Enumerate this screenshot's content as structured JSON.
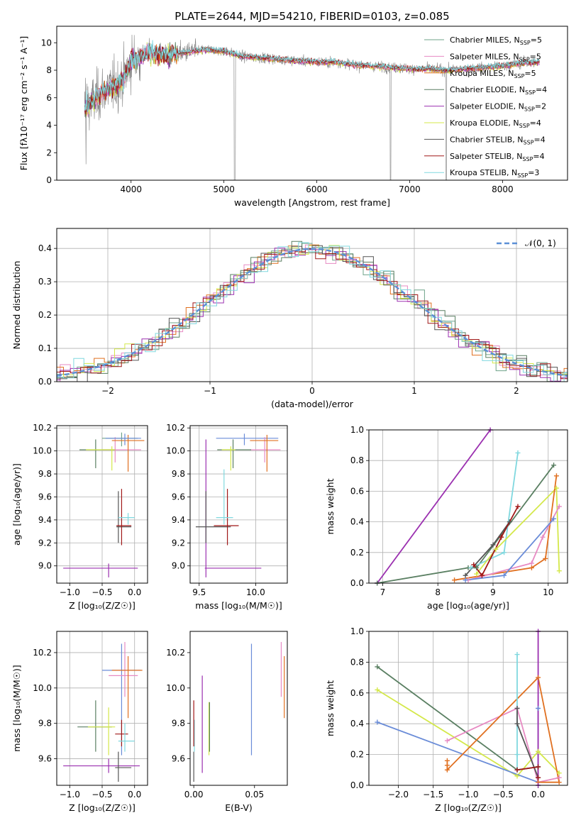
{
  "figure": {
    "title": "PLATE=2644, MJD=54210, FIBERID=0103, z=0.085"
  },
  "colors": {
    "Chabrier MILES": "#6fa38a",
    "Salpeter MILES": "#e78ac3",
    "Kroupa MILES": "#e07020",
    "Chabrier ELODIE": "#5a7f62",
    "Salpeter ELODIE": "#9b30b0",
    "Kroupa ELODIE": "#d4e84a",
    "Chabrier STELIB": "#555555",
    "Salpeter STELIB": "#a01818",
    "Kroupa STELIB": "#80d8df",
    "blue": "#6a8cd8",
    "normal": "#5b8fd6",
    "grid": "#b0b0b0"
  },
  "chart_data": [
    {
      "id": "spectrum",
      "type": "line",
      "title": "PLATE=2644, MJD=54210, FIBERID=0103, z=0.085",
      "xlabel": "wavelength [Angstrom, rest frame]",
      "ylabel": "Flux [fλ10⁻¹⁷ erg cm⁻² s⁻¹ A⁻¹]",
      "xlim": [
        3200,
        8700
      ],
      "ylim": [
        0,
        11.2
      ],
      "xticks": [
        4000,
        5000,
        6000,
        7000,
        8000
      ],
      "yticks": [
        0,
        2,
        4,
        6,
        8,
        10
      ],
      "grid": false,
      "legend_position": "right",
      "legend": [
        {
          "label": "Chabrier MILES, N",
          "sub": "SSP",
          "tail": "=5",
          "color_key": "Chabrier MILES"
        },
        {
          "label": "Salpeter MILES, N",
          "sub": "SSP",
          "tail": "=5",
          "color_key": "Salpeter MILES"
        },
        {
          "label": "Kroupa MILES, N",
          "sub": "SSP",
          "tail": "=5",
          "color_key": "Kroupa MILES"
        },
        {
          "label": "Chabrier ELODIE, N",
          "sub": "SSP",
          "tail": "=4",
          "color_key": "Chabrier ELODIE"
        },
        {
          "label": "Salpeter ELODIE, N",
          "sub": "SSP",
          "tail": "=2",
          "color_key": "Salpeter ELODIE"
        },
        {
          "label": "Kroupa ELODIE, N",
          "sub": "SSP",
          "tail": "=4",
          "color_key": "Kroupa ELODIE"
        },
        {
          "label": "Chabrier STELIB, N",
          "sub": "SSP",
          "tail": "=4",
          "color_key": "Chabrier STELIB"
        },
        {
          "label": "Salpeter STELIB, N",
          "sub": "SSP",
          "tail": "=4",
          "color_key": "Salpeter STELIB"
        },
        {
          "label": "Kroupa STELIB, N",
          "sub": "SSP",
          "tail": "=3",
          "color_key": "Kroupa STELIB"
        }
      ],
      "data_envelope": {
        "x": [
          3500,
          3600,
          3700,
          3800,
          3900,
          4000,
          4100,
          4200,
          4400,
          4600,
          4800,
          5000,
          5200,
          5400,
          5600,
          5800,
          6000,
          6200,
          6400,
          6600,
          6800,
          7000,
          7200,
          7400,
          7600,
          7800,
          8000,
          8200,
          8400
        ],
        "y": [
          5.2,
          5.8,
          6.5,
          6.8,
          7.2,
          8.6,
          9.0,
          9.3,
          9.1,
          9.3,
          9.5,
          9.4,
          9.0,
          8.9,
          8.8,
          8.7,
          8.6,
          8.6,
          8.4,
          8.3,
          8.2,
          8.1,
          8.1,
          8.0,
          8.1,
          8.2,
          8.3,
          8.5,
          8.6
        ]
      }
    },
    {
      "id": "residuals",
      "type": "histogram",
      "xlabel": "(data-model)/error",
      "ylabel": "Normed distribution",
      "xlim": [
        -2.5,
        2.5
      ],
      "ylim": [
        0,
        0.46
      ],
      "xticks": [
        -2,
        -1,
        0,
        1,
        2
      ],
      "yticks": [
        0.0,
        0.1,
        0.2,
        0.3,
        0.4
      ],
      "grid": true,
      "bin_width": 0.1,
      "legend_position": "top-right",
      "legend": [
        {
          "label": "𝒩(0, 1)",
          "color_key": "normal",
          "style": "dashed"
        }
      ]
    },
    {
      "id": "age_vs_Z",
      "type": "errorbar",
      "xlabel": "Z [log₁₀(Z/Z☉)]",
      "ylabel": "age  [log₁₀(age/yr)]",
      "xlim": [
        -1.2,
        0.2
      ],
      "ylim": [
        8.85,
        10.22
      ],
      "xticks": [
        -1.0,
        -0.5,
        0.0
      ],
      "yticks": [
        9.0,
        9.2,
        9.4,
        9.6,
        9.8,
        10.0,
        10.2
      ],
      "grid": true,
      "points": [
        {
          "c": "Chabrier MILES",
          "x": -0.2,
          "y": 10.11,
          "xl": -0.5,
          "xh": 0.05,
          "yl": 10.04,
          "yh": 10.16
        },
        {
          "c": "Salpeter MILES",
          "x": -0.3,
          "y": 10.01,
          "xl": -0.5,
          "xh": 0.1,
          "yl": 9.9,
          "yh": 10.12
        },
        {
          "c": "Kroupa MILES",
          "x": -0.1,
          "y": 10.09,
          "xl": -0.35,
          "xh": 0.15,
          "yl": 9.82,
          "yh": 10.14
        },
        {
          "c": "blue",
          "x": -0.15,
          "y": 10.11,
          "xl": -0.45,
          "xh": 0.1,
          "yl": 10.05,
          "yh": 10.15
        },
        {
          "c": "Chabrier ELODIE",
          "x": -0.6,
          "y": 10.01,
          "xl": -0.85,
          "xh": -0.3,
          "yl": 9.85,
          "yh": 10.1
        },
        {
          "c": "Salpeter ELODIE",
          "x": -0.4,
          "y": 8.98,
          "xl": -1.1,
          "xh": 0.05,
          "yl": 8.9,
          "yh": 9.02
        },
        {
          "c": "Kroupa ELODIE",
          "x": -0.35,
          "y": 10.01,
          "xl": -0.75,
          "xh": -0.3,
          "yl": 9.83,
          "yh": 10.04
        },
        {
          "c": "Chabrier STELIB",
          "x": -0.25,
          "y": 9.34,
          "xl": -0.28,
          "xh": -0.05,
          "yl": 9.2,
          "yh": 9.65
        },
        {
          "c": "Salpeter STELIB",
          "x": -0.2,
          "y": 9.35,
          "xl": -0.28,
          "xh": -0.05,
          "yl": 9.18,
          "yh": 9.67
        },
        {
          "c": "Kroupa STELIB",
          "x": -0.1,
          "y": 9.42,
          "xl": -0.25,
          "xh": 0.0,
          "yl": 9.36,
          "yh": 9.46
        }
      ]
    },
    {
      "id": "age_vs_mass",
      "type": "errorbar",
      "xlabel": "mass [log₁₀(M/M☉)]",
      "ylabel": "",
      "xlim": [
        9.42,
        10.28
      ],
      "ylim": [
        8.85,
        10.22
      ],
      "xticks": [
        9.5,
        10.0
      ],
      "yticks": [
        9.0,
        9.2,
        9.4,
        9.6,
        9.8,
        10.0,
        10.2
      ],
      "grid": true,
      "points": [
        {
          "c": "blue",
          "x": 9.9,
          "y": 10.11,
          "xl": 9.65,
          "xh": 10.2,
          "yl": 10.05,
          "yh": 10.15
        },
        {
          "c": "Salpeter MILES",
          "x": 10.08,
          "y": 10.01,
          "xl": 9.95,
          "xh": 10.22,
          "yl": 9.9,
          "yh": 10.12
        },
        {
          "c": "Kroupa MILES",
          "x": 10.1,
          "y": 10.09,
          "xl": 9.95,
          "xh": 10.2,
          "yl": 9.82,
          "yh": 10.14
        },
        {
          "c": "Chabrier ELODIE",
          "x": 9.8,
          "y": 10.01,
          "xl": 9.66,
          "xh": 9.96,
          "yl": 9.85,
          "yh": 10.1
        },
        {
          "c": "Salpeter ELODIE",
          "x": 9.56,
          "y": 8.98,
          "xl": 9.55,
          "xh": 10.05,
          "yl": 8.9,
          "yh": 10.1
        },
        {
          "c": "Kroupa ELODIE",
          "x": 9.78,
          "y": 10.01,
          "xl": 9.7,
          "xh": 9.82,
          "yl": 9.83,
          "yh": 10.04
        },
        {
          "c": "Chabrier STELIB",
          "x": 9.56,
          "y": 9.34,
          "xl": 9.47,
          "xh": 9.78,
          "yl": 9.2,
          "yh": 9.65
        },
        {
          "c": "Salpeter STELIB",
          "x": 9.75,
          "y": 9.35,
          "xl": 9.63,
          "xh": 9.85,
          "yl": 9.18,
          "yh": 9.67
        },
        {
          "c": "Kroupa STELIB",
          "x": 9.72,
          "y": 9.42,
          "xl": 9.65,
          "xh": 9.8,
          "yl": 9.36,
          "yh": 9.84
        }
      ]
    },
    {
      "id": "weight_vs_age",
      "type": "line",
      "xlabel": "age  [log₁₀(age/yr)]",
      "ylabel": "mass weight",
      "xlim": [
        6.75,
        10.35
      ],
      "ylim": [
        0,
        1.0
      ],
      "xticks": [
        7,
        8,
        9,
        10
      ],
      "yticks": [
        0.0,
        0.2,
        0.4,
        0.6,
        0.8,
        1.0
      ],
      "grid": true,
      "series": [
        {
          "c": "Salpeter ELODIE",
          "x": [
            6.9,
            8.95
          ],
          "y": [
            0.0,
            1.0
          ]
        },
        {
          "c": "Chabrier ELODIE",
          "x": [
            6.9,
            8.55,
            8.7,
            10.1
          ],
          "y": [
            0.0,
            0.1,
            0.1,
            0.77
          ]
        },
        {
          "c": "Kroupa STELIB",
          "x": [
            8.6,
            9.2,
            9.45
          ],
          "y": [
            0.1,
            0.2,
            0.85
          ]
        },
        {
          "c": "Kroupa ELODIE",
          "x": [
            8.7,
            9.05,
            10.15,
            10.2
          ],
          "y": [
            0.06,
            0.22,
            0.62,
            0.08
          ]
        },
        {
          "c": "Chabrier STELIB",
          "x": [
            8.5,
            9.0,
            9.3
          ],
          "y": [
            0.05,
            0.25,
            0.4
          ]
        },
        {
          "c": "Salpeter STELIB",
          "x": [
            8.65,
            8.8,
            9.15,
            9.45
          ],
          "y": [
            0.12,
            0.05,
            0.3,
            0.5
          ]
        },
        {
          "c": "Kroupa MILES",
          "x": [
            8.3,
            9.7,
            9.95,
            10.15
          ],
          "y": [
            0.02,
            0.1,
            0.16,
            0.7
          ]
        },
        {
          "c": "Salpeter MILES",
          "x": [
            8.55,
            9.7,
            9.9,
            10.2
          ],
          "y": [
            0.02,
            0.13,
            0.3,
            0.5
          ]
        },
        {
          "c": "blue",
          "x": [
            8.5,
            9.2,
            10.1
          ],
          "y": [
            0.02,
            0.05,
            0.42
          ]
        }
      ]
    },
    {
      "id": "mass_vs_Z",
      "type": "errorbar",
      "xlabel": "Z [log₁₀(Z/Z☉)]",
      "ylabel": "mass [log₁₀(M/M☉)]",
      "xlim": [
        -1.2,
        0.2
      ],
      "ylim": [
        9.45,
        10.32
      ],
      "xticks": [
        -1.0,
        -0.5,
        0.0
      ],
      "yticks": [
        9.6,
        9.8,
        10.0,
        10.2
      ],
      "grid": true,
      "points": [
        {
          "c": "blue",
          "x": -0.2,
          "y": 10.1,
          "xl": -0.5,
          "xh": 0.1,
          "yl": 9.62,
          "yh": 10.25
        },
        {
          "c": "Salpeter MILES",
          "x": -0.15,
          "y": 10.07,
          "xl": -0.4,
          "xh": 0.05,
          "yl": 9.95,
          "yh": 10.26
        },
        {
          "c": "Kroupa MILES",
          "x": -0.1,
          "y": 10.1,
          "xl": -0.35,
          "xh": 0.12,
          "yl": 9.83,
          "yh": 10.18
        },
        {
          "c": "Chabrier ELODIE",
          "x": -0.6,
          "y": 9.78,
          "xl": -0.88,
          "xh": -0.35,
          "yl": 9.64,
          "yh": 9.93
        },
        {
          "c": "Salpeter ELODIE",
          "x": -0.4,
          "y": 9.56,
          "xl": -1.1,
          "xh": 0.08,
          "yl": 9.52,
          "yh": 9.6
        },
        {
          "c": "Kroupa ELODIE",
          "x": -0.4,
          "y": 9.78,
          "xl": -0.72,
          "xh": -0.3,
          "yl": 9.62,
          "yh": 9.89
        },
        {
          "c": "Chabrier STELIB",
          "x": -0.25,
          "y": 9.55,
          "xl": -0.3,
          "xh": -0.05,
          "yl": 9.47,
          "yh": 9.64
        },
        {
          "c": "Salpeter STELIB",
          "x": -0.2,
          "y": 9.74,
          "xl": -0.3,
          "xh": -0.1,
          "yl": 9.67,
          "yh": 9.82
        },
        {
          "c": "Kroupa STELIB",
          "x": -0.15,
          "y": 9.7,
          "xl": -0.25,
          "xh": 0.0,
          "yl": 9.64,
          "yh": 9.8
        }
      ]
    },
    {
      "id": "mass_vs_ebv",
      "type": "errorbar",
      "xlabel": "E(B-V)",
      "ylabel": "",
      "xlim": [
        -0.003,
        0.077
      ],
      "ylim": [
        9.45,
        10.32
      ],
      "xticks": [
        0.0,
        0.05
      ],
      "yticks": [
        9.6,
        9.8,
        10.0,
        10.2
      ],
      "grid": false,
      "points": [
        {
          "c": "Chabrier STELIB",
          "x": 0.0,
          "y": 9.55,
          "yl": 9.47,
          "yh": 9.64
        },
        {
          "c": "Kroupa STELIB",
          "x": 0.0005,
          "y": 9.7,
          "yl": 9.64,
          "yh": 9.82
        },
        {
          "c": "Salpeter STELIB",
          "x": 0.0,
          "y": 9.74,
          "yl": 9.67,
          "yh": 9.93
        },
        {
          "c": "Salpeter ELODIE",
          "x": 0.007,
          "y": 9.56,
          "yl": 9.52,
          "yh": 10.07
        },
        {
          "c": "Kroupa ELODIE",
          "x": 0.0125,
          "y": 9.78,
          "yl": 9.62,
          "yh": 9.92
        },
        {
          "c": "Chabrier ELODIE",
          "x": 0.013,
          "y": 9.78,
          "yl": 9.64,
          "yh": 9.92
        },
        {
          "c": "blue",
          "x": 0.0475,
          "y": 10.1,
          "yl": 9.62,
          "yh": 10.25
        },
        {
          "c": "Salpeter MILES",
          "x": 0.072,
          "y": 10.07,
          "yl": 9.95,
          "yh": 10.26
        },
        {
          "c": "Kroupa MILES",
          "x": 0.0745,
          "y": 10.1,
          "yl": 9.83,
          "yh": 10.18
        }
      ]
    },
    {
      "id": "weight_vs_Z",
      "type": "line",
      "xlabel": "Z [log₁₀(Z/Z☉)]",
      "ylabel": "mass weight",
      "xlim": [
        -2.42,
        0.42
      ],
      "ylim": [
        0,
        1.0
      ],
      "xticks": [
        -2.0,
        -1.5,
        -1.0,
        -0.5,
        0.0
      ],
      "yticks": [
        0.0,
        0.2,
        0.4,
        0.6,
        0.8,
        1.0
      ],
      "grid": true,
      "series": [
        {
          "c": "Chabrier ELODIE",
          "x": [
            -2.3,
            -0.3,
            0.0
          ],
          "y": [
            0.77,
            0.1,
            0.12
          ]
        },
        {
          "c": "Kroupa ELODIE",
          "x": [
            -2.3,
            -0.3,
            0.0,
            0.3
          ],
          "y": [
            0.62,
            0.06,
            0.22,
            0.08
          ]
        },
        {
          "c": "blue",
          "x": [
            -2.3,
            0.0,
            0.0,
            0.0
          ],
          "y": [
            0.41,
            0.02,
            0.5,
            0.05
          ]
        },
        {
          "c": "Salpeter MILES",
          "x": [
            -1.3,
            -0.3,
            0.0,
            0.3
          ],
          "y": [
            0.29,
            0.5,
            0.02,
            0.05
          ]
        },
        {
          "c": "Kroupa MILES",
          "x": [
            -1.3,
            -1.3,
            -1.3,
            0.0,
            0.3,
            0.0
          ],
          "y": [
            0.16,
            0.13,
            0.1,
            0.7,
            0.02,
            0.02
          ]
        },
        {
          "c": "Kroupa STELIB",
          "x": [
            -0.3,
            -0.3,
            -0.3
          ],
          "y": [
            0.1,
            0.2,
            0.85
          ]
        },
        {
          "c": "Chabrier STELIB",
          "x": [
            -0.3,
            -0.3,
            0.0,
            0.0
          ],
          "y": [
            0.5,
            0.4,
            0.05,
            0.12
          ]
        },
        {
          "c": "Salpeter STELIB",
          "x": [
            -0.3,
            0.0,
            0.0
          ],
          "y": [
            0.1,
            0.12,
            0.05
          ]
        },
        {
          "c": "Salpeter ELODIE",
          "x": [
            0.0,
            0.0
          ],
          "y": [
            0.0,
            1.0
          ]
        }
      ]
    }
  ]
}
